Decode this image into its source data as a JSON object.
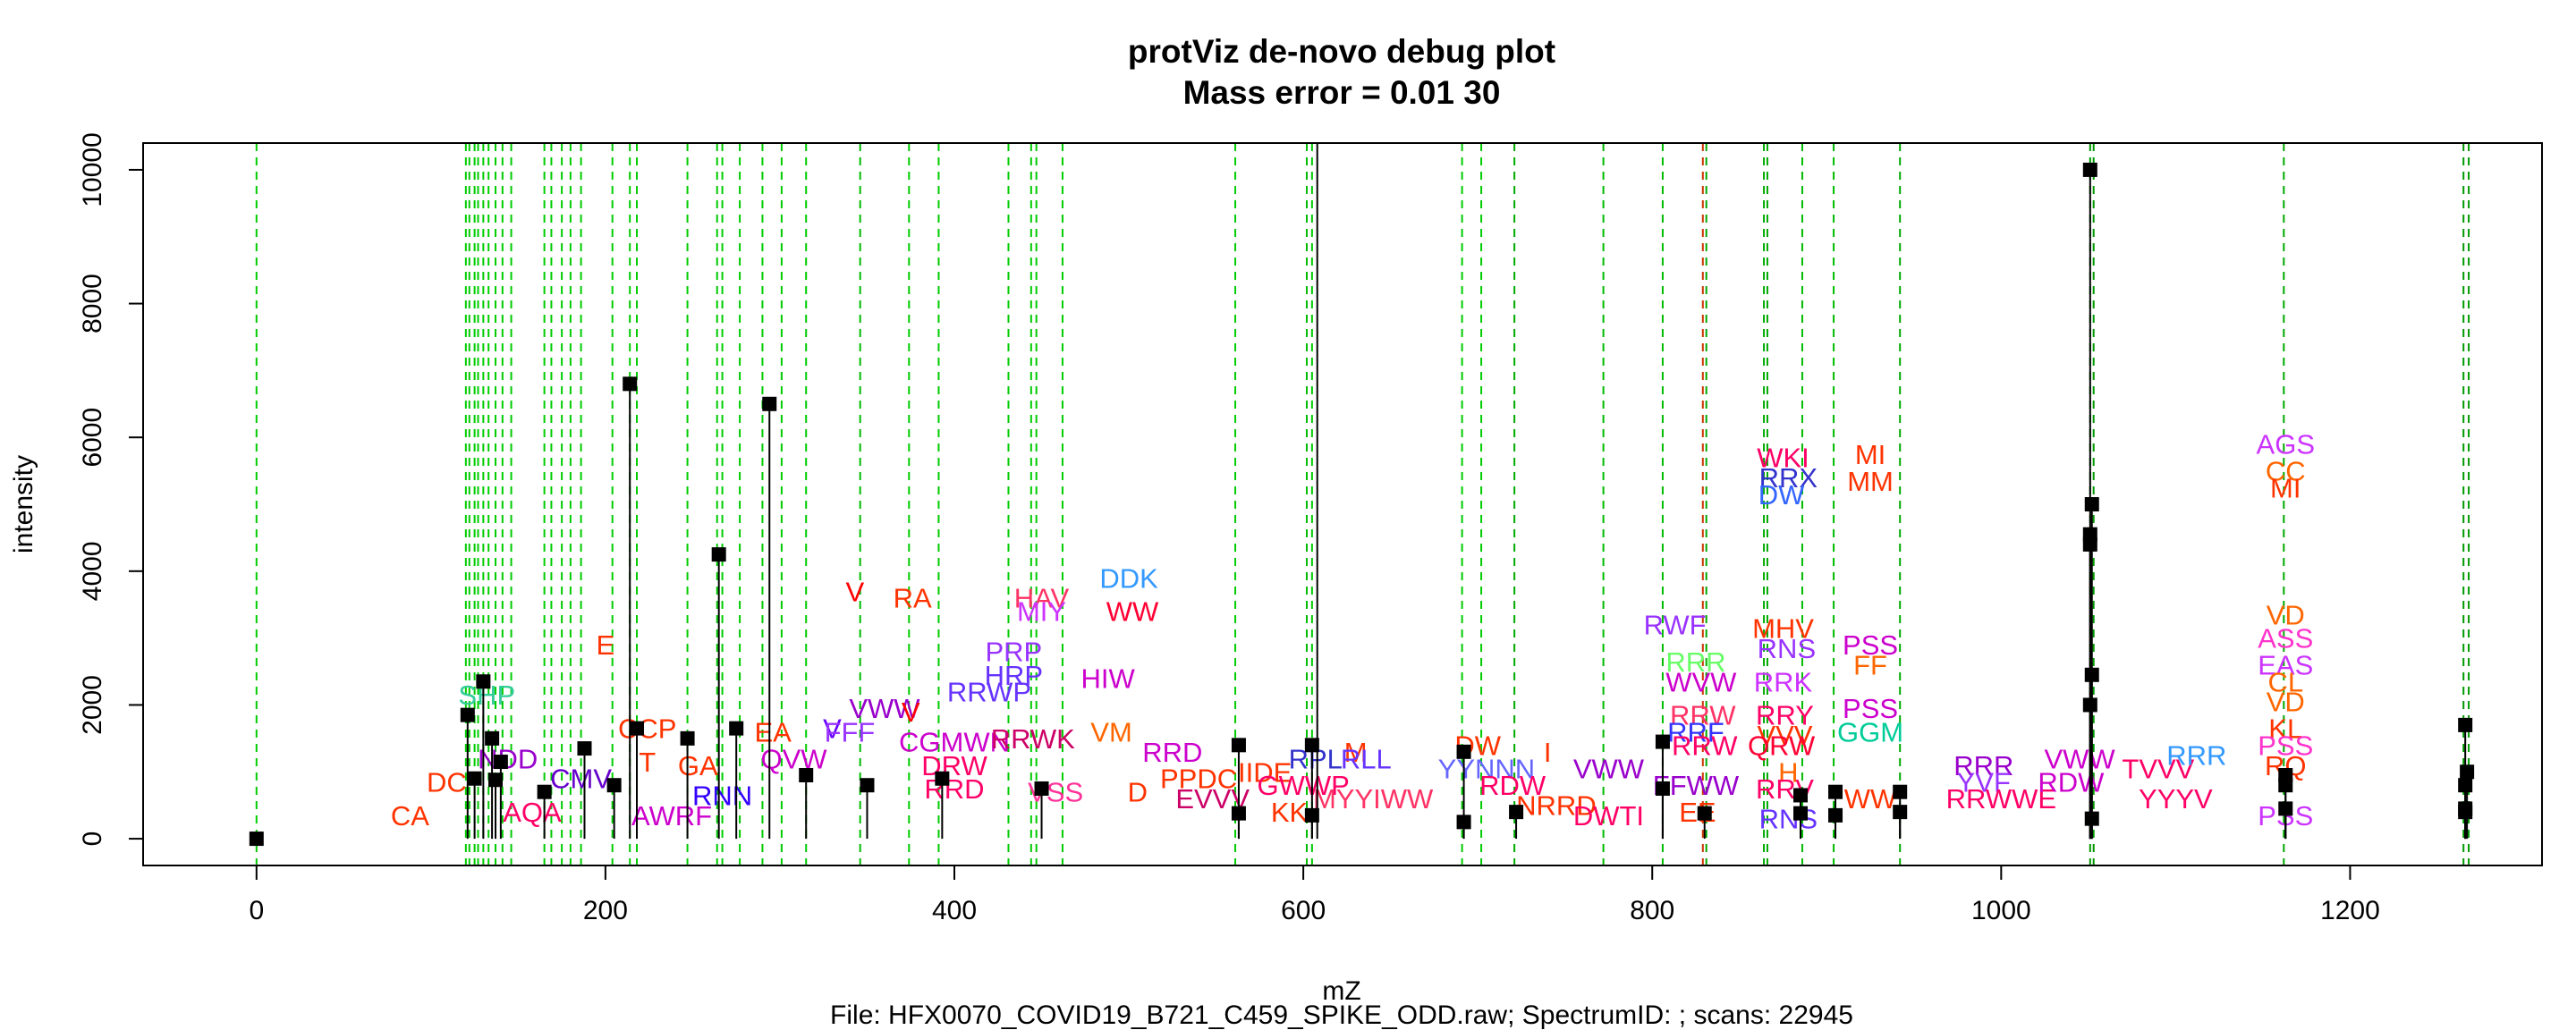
{
  "chart_data": {
    "type": "scatter",
    "title": "protViz de-novo debug plot",
    "subtitle": "Mass error = 0.01 30",
    "xlabel": "mZ",
    "ylabel": "intensity",
    "footer": "File: HFX0070_COVID19_B721_C459_SPIKE_ODD.raw; SpectrumID: ; scans: 22945",
    "xlim": [
      -65,
      1310
    ],
    "ylim": [
      -400,
      10400
    ],
    "x_ticks": [
      "0",
      "200",
      "400",
      "600",
      "800",
      "1000",
      "1200"
    ],
    "y_ticks": [
      "0",
      "2000",
      "4000",
      "6000",
      "8000",
      "10000"
    ],
    "peaks": [
      {
        "x": 0,
        "y": 0
      },
      {
        "x": 121,
        "y": 1850
      },
      {
        "x": 125,
        "y": 900
      },
      {
        "x": 130,
        "y": 2350
      },
      {
        "x": 135,
        "y": 1500
      },
      {
        "x": 137,
        "y": 880
      },
      {
        "x": 140,
        "y": 1150
      },
      {
        "x": 165,
        "y": 700
      },
      {
        "x": 188,
        "y": 1350
      },
      {
        "x": 205,
        "y": 800
      },
      {
        "x": 214,
        "y": 6800
      },
      {
        "x": 218,
        "y": 1650
      },
      {
        "x": 247,
        "y": 1500
      },
      {
        "x": 265,
        "y": 4250
      },
      {
        "x": 275,
        "y": 1650
      },
      {
        "x": 294,
        "y": 6500
      },
      {
        "x": 315,
        "y": 950
      },
      {
        "x": 350,
        "y": 800
      },
      {
        "x": 393,
        "y": 900
      },
      {
        "x": 450,
        "y": 750
      },
      {
        "x": 563,
        "y": 1400
      },
      {
        "x": 563,
        "y": 380
      },
      {
        "x": 605,
        "y": 1400
      },
      {
        "x": 605,
        "y": 350
      },
      {
        "x": 608,
        "y": 10400
      },
      {
        "x": 692,
        "y": 1300
      },
      {
        "x": 692,
        "y": 250
      },
      {
        "x": 722,
        "y": 400
      },
      {
        "x": 806,
        "y": 1450
      },
      {
        "x": 806,
        "y": 750
      },
      {
        "x": 830,
        "y": 380
      },
      {
        "x": 885,
        "y": 650
      },
      {
        "x": 885,
        "y": 380
      },
      {
        "x": 905,
        "y": 700
      },
      {
        "x": 905,
        "y": 350
      },
      {
        "x": 942,
        "y": 700
      },
      {
        "x": 942,
        "y": 400
      },
      {
        "x": 1051,
        "y": 10000
      },
      {
        "x": 1052,
        "y": 5000
      },
      {
        "x": 1051,
        "y": 4550
      },
      {
        "x": 1051,
        "y": 4400
      },
      {
        "x": 1052,
        "y": 2450
      },
      {
        "x": 1051,
        "y": 2000
      },
      {
        "x": 1052,
        "y": 300
      },
      {
        "x": 1163,
        "y": 950
      },
      {
        "x": 1163,
        "y": 800
      },
      {
        "x": 1163,
        "y": 450
      },
      {
        "x": 1266,
        "y": 1700
      },
      {
        "x": 1267,
        "y": 1000
      },
      {
        "x": 1266,
        "y": 800
      },
      {
        "x": 1266,
        "y": 450
      },
      {
        "x": 1266,
        "y": 400
      }
    ],
    "match_lines": [
      {
        "x": 0,
        "color": "#00cc00"
      },
      {
        "x": 120,
        "color": "#00cc00"
      },
      {
        "x": 122,
        "color": "#00cc00"
      },
      {
        "x": 125,
        "color": "#00cc00"
      },
      {
        "x": 127,
        "color": "#00cc00"
      },
      {
        "x": 130,
        "color": "#00cc00"
      },
      {
        "x": 133,
        "color": "#00cc00"
      },
      {
        "x": 137,
        "color": "#00cc00"
      },
      {
        "x": 141,
        "color": "#00cc00"
      },
      {
        "x": 146,
        "color": "#00cc00"
      },
      {
        "x": 165,
        "color": "#00cc00"
      },
      {
        "x": 169,
        "color": "#00cc00"
      },
      {
        "x": 175,
        "color": "#00cc00"
      },
      {
        "x": 180,
        "color": "#00cc00"
      },
      {
        "x": 186,
        "color": "#00cc00"
      },
      {
        "x": 204,
        "color": "#00cc00"
      },
      {
        "x": 214,
        "color": "#00cc00"
      },
      {
        "x": 218,
        "color": "#00cc00"
      },
      {
        "x": 247,
        "color": "#00cc00"
      },
      {
        "x": 264,
        "color": "#00cc00"
      },
      {
        "x": 267,
        "color": "#00cc00"
      },
      {
        "x": 277,
        "color": "#00cc00"
      },
      {
        "x": 290,
        "color": "#00cc00"
      },
      {
        "x": 301,
        "color": "#00cc00"
      },
      {
        "x": 315,
        "color": "#00cc00"
      },
      {
        "x": 346,
        "color": "#00bb00"
      },
      {
        "x": 374,
        "color": "#00cc00"
      },
      {
        "x": 391,
        "color": "#00cc00"
      },
      {
        "x": 431,
        "color": "#00cc00"
      },
      {
        "x": 444,
        "color": "#00cc00"
      },
      {
        "x": 447,
        "color": "#00cc00"
      },
      {
        "x": 462,
        "color": "#00cc00"
      },
      {
        "x": 561,
        "color": "#00cc00"
      },
      {
        "x": 602,
        "color": "#00bb00"
      },
      {
        "x": 605,
        "color": "#00cc00"
      },
      {
        "x": 691,
        "color": "#00cc00"
      },
      {
        "x": 702,
        "color": "#00cc00"
      },
      {
        "x": 721,
        "color": "#00aa00"
      },
      {
        "x": 772,
        "color": "#00bb00"
      },
      {
        "x": 806,
        "color": "#00bb00"
      },
      {
        "x": 829,
        "color": "#cc3300"
      },
      {
        "x": 831,
        "color": "#00aa00"
      },
      {
        "x": 864,
        "color": "#00aa00"
      },
      {
        "x": 866,
        "color": "#00aa00"
      },
      {
        "x": 886,
        "color": "#00bb00"
      },
      {
        "x": 904,
        "color": "#00bb00"
      },
      {
        "x": 942,
        "color": "#00aa00"
      },
      {
        "x": 1051,
        "color": "#009900"
      },
      {
        "x": 1053,
        "color": "#009900"
      },
      {
        "x": 1162,
        "color": "#00aa00"
      },
      {
        "x": 1265,
        "color": "#009900"
      },
      {
        "x": 1268,
        "color": "#009900"
      }
    ],
    "fragment_labels": [
      {
        "x": 88,
        "y": 350,
        "text": "CA",
        "color": "#ff3300"
      },
      {
        "x": 109,
        "y": 850,
        "text": "DC",
        "color": "#ff3300"
      },
      {
        "x": 132,
        "y": 2150,
        "text": "SHP",
        "color": "#33cc99"
      },
      {
        "x": 144,
        "y": 1200,
        "text": "NDD",
        "color": "#9900cc"
      },
      {
        "x": 158,
        "y": 400,
        "text": "AQA",
        "color": "#ff0066"
      },
      {
        "x": 186,
        "y": 900,
        "text": "CMV",
        "color": "#6600cc"
      },
      {
        "x": 200,
        "y": 2900,
        "text": "E",
        "color": "#ff3300"
      },
      {
        "x": 224,
        "y": 1650,
        "text": "CCP",
        "color": "#ff3300"
      },
      {
        "x": 224,
        "y": 1150,
        "text": "T",
        "color": "#ff3300"
      },
      {
        "x": 238,
        "y": 350,
        "text": "AWRF",
        "color": "#cc00cc"
      },
      {
        "x": 253,
        "y": 1100,
        "text": "GA",
        "color": "#ff3300"
      },
      {
        "x": 267,
        "y": 650,
        "text": "RNN",
        "color": "#3300ff"
      },
      {
        "x": 296,
        "y": 1600,
        "text": "EA",
        "color": "#ff3300"
      },
      {
        "x": 308,
        "y": 1200,
        "text": "QVW",
        "color": "#cc00cc"
      },
      {
        "x": 330,
        "y": 1650,
        "text": "V",
        "color": "#6600ff"
      },
      {
        "x": 340,
        "y": 1600,
        "text": "FFF",
        "color": "#9933ff"
      },
      {
        "x": 343,
        "y": 3700,
        "text": "V",
        "color": "#ff0000"
      },
      {
        "x": 360,
        "y": 1950,
        "text": "VWW",
        "color": "#9900cc"
      },
      {
        "x": 375,
        "y": 1900,
        "text": "V",
        "color": "#ff0000"
      },
      {
        "x": 376,
        "y": 3600,
        "text": "RA",
        "color": "#ff3300"
      },
      {
        "x": 400,
        "y": 1450,
        "text": "CGMWN",
        "color": "#cc00cc"
      },
      {
        "x": 400,
        "y": 1100,
        "text": "DRW",
        "color": "#ff0066"
      },
      {
        "x": 400,
        "y": 750,
        "text": "RRD",
        "color": "#ff0066"
      },
      {
        "x": 420,
        "y": 2200,
        "text": "RRWP",
        "color": "#6633ff"
      },
      {
        "x": 434,
        "y": 2800,
        "text": "PRP",
        "color": "#9933ff"
      },
      {
        "x": 434,
        "y": 2450,
        "text": "HRP",
        "color": "#6633ff"
      },
      {
        "x": 445,
        "y": 1500,
        "text": "RRWK",
        "color": "#cc0066"
      },
      {
        "x": 450,
        "y": 3600,
        "text": "HAV",
        "color": "#ff3366"
      },
      {
        "x": 450,
        "y": 3400,
        "text": "MIY",
        "color": "#cc33ff"
      },
      {
        "x": 458,
        "y": 700,
        "text": "VSS",
        "color": "#ff3399"
      },
      {
        "x": 488,
        "y": 2400,
        "text": "HIW",
        "color": "#cc00cc"
      },
      {
        "x": 490,
        "y": 1600,
        "text": "VM",
        "color": "#ff6600"
      },
      {
        "x": 500,
        "y": 3900,
        "text": "DDK",
        "color": "#3399ff"
      },
      {
        "x": 502,
        "y": 3400,
        "text": "WW",
        "color": "#ff0033"
      },
      {
        "x": 505,
        "y": 700,
        "text": "D",
        "color": "#ff3300"
      },
      {
        "x": 525,
        "y": 1300,
        "text": "RRD",
        "color": "#cc00cc"
      },
      {
        "x": 540,
        "y": 900,
        "text": "PPDC",
        "color": "#ff3300"
      },
      {
        "x": 548,
        "y": 600,
        "text": "EVVV",
        "color": "#cc0066"
      },
      {
        "x": 578,
        "y": 1000,
        "text": "IIDE",
        "color": "#ff3300"
      },
      {
        "x": 592,
        "y": 400,
        "text": "KK",
        "color": "#ff3300"
      },
      {
        "x": 600,
        "y": 800,
        "text": "GWWP",
        "color": "#ff0066"
      },
      {
        "x": 607,
        "y": 1200,
        "text": "RPL",
        "color": "#3333cc"
      },
      {
        "x": 630,
        "y": 1300,
        "text": "M",
        "color": "#ff3300"
      },
      {
        "x": 636,
        "y": 1200,
        "text": "RLL",
        "color": "#6633ff"
      },
      {
        "x": 640,
        "y": 600,
        "text": "MYYIWW",
        "color": "#ff3366"
      },
      {
        "x": 700,
        "y": 1400,
        "text": "DW",
        "color": "#ff3300"
      },
      {
        "x": 705,
        "y": 1050,
        "text": "YYNNN",
        "color": "#6666ff"
      },
      {
        "x": 720,
        "y": 800,
        "text": "RDW",
        "color": "#ff0066"
      },
      {
        "x": 740,
        "y": 1300,
        "text": "I",
        "color": "#ff3300"
      },
      {
        "x": 745,
        "y": 500,
        "text": "NRRD",
        "color": "#ff3300"
      },
      {
        "x": 775,
        "y": 350,
        "text": "DWTI",
        "color": "#ff0066"
      },
      {
        "x": 775,
        "y": 1050,
        "text": "VWW",
        "color": "#9900cc"
      },
      {
        "x": 813,
        "y": 3200,
        "text": "RWF",
        "color": "#9933ff"
      },
      {
        "x": 825,
        "y": 2650,
        "text": "RRR",
        "color": "#66ff66"
      },
      {
        "x": 828,
        "y": 2350,
        "text": "WVW",
        "color": "#cc00cc"
      },
      {
        "x": 829,
        "y": 1850,
        "text": "RRW",
        "color": "#ff3366"
      },
      {
        "x": 825,
        "y": 1600,
        "text": "RRF",
        "color": "#3333ff"
      },
      {
        "x": 830,
        "y": 1400,
        "text": "RRW",
        "color": "#ff0066"
      },
      {
        "x": 825,
        "y": 800,
        "text": "FFWW",
        "color": "#9900cc"
      },
      {
        "x": 826,
        "y": 400,
        "text": "EE",
        "color": "#ff3300"
      },
      {
        "x": 875,
        "y": 5700,
        "text": "WKI",
        "color": "#ff0066"
      },
      {
        "x": 878,
        "y": 5400,
        "text": "RRX",
        "color": "#3333cc"
      },
      {
        "x": 874,
        "y": 5150,
        "text": "DW",
        "color": "#3366ff"
      },
      {
        "x": 875,
        "y": 3150,
        "text": "MHV",
        "color": "#ff3300"
      },
      {
        "x": 877,
        "y": 2850,
        "text": "RNS",
        "color": "#9933ff"
      },
      {
        "x": 875,
        "y": 2350,
        "text": "RRK",
        "color": "#cc33ff"
      },
      {
        "x": 876,
        "y": 1850,
        "text": "RRY",
        "color": "#ff0066"
      },
      {
        "x": 876,
        "y": 1550,
        "text": "VVV",
        "color": "#ff3300"
      },
      {
        "x": 874,
        "y": 1400,
        "text": "QRW",
        "color": "#ff0033"
      },
      {
        "x": 878,
        "y": 1000,
        "text": "H",
        "color": "#ff6600"
      },
      {
        "x": 876,
        "y": 750,
        "text": "RRV",
        "color": "#ff0066"
      },
      {
        "x": 878,
        "y": 300,
        "text": "RNS",
        "color": "#6633ff"
      },
      {
        "x": 925,
        "y": 5750,
        "text": "MI",
        "color": "#ff3300"
      },
      {
        "x": 925,
        "y": 5350,
        "text": "MM",
        "color": "#ff3300"
      },
      {
        "x": 925,
        "y": 2900,
        "text": "PSS",
        "color": "#cc00cc"
      },
      {
        "x": 925,
        "y": 2600,
        "text": "FF",
        "color": "#ff6600"
      },
      {
        "x": 925,
        "y": 1950,
        "text": "PSS",
        "color": "#cc00cc"
      },
      {
        "x": 925,
        "y": 1600,
        "text": "GGM",
        "color": "#00cc99"
      },
      {
        "x": 925,
        "y": 600,
        "text": "WW",
        "color": "#ff3300"
      },
      {
        "x": 990,
        "y": 1100,
        "text": "RRR",
        "color": "#9900cc"
      },
      {
        "x": 990,
        "y": 850,
        "text": "YVF",
        "color": "#9933ff"
      },
      {
        "x": 1000,
        "y": 600,
        "text": "RRWWE",
        "color": "#ff0066"
      },
      {
        "x": 1045,
        "y": 1200,
        "text": "VWW",
        "color": "#cc00cc"
      },
      {
        "x": 1040,
        "y": 850,
        "text": "RDW",
        "color": "#cc00cc"
      },
      {
        "x": 1090,
        "y": 1050,
        "text": "TVVV",
        "color": "#ff0066"
      },
      {
        "x": 1112,
        "y": 1250,
        "text": "RRR",
        "color": "#3399ff"
      },
      {
        "x": 1100,
        "y": 600,
        "text": "YYYV",
        "color": "#ff0066"
      },
      {
        "x": 1163,
        "y": 5900,
        "text": "AGS",
        "color": "#cc33ff"
      },
      {
        "x": 1163,
        "y": 5500,
        "text": "CC",
        "color": "#ff6600"
      },
      {
        "x": 1163,
        "y": 5250,
        "text": "MI",
        "color": "#ff3300"
      },
      {
        "x": 1163,
        "y": 3350,
        "text": "VD",
        "color": "#ff6600"
      },
      {
        "x": 1163,
        "y": 3000,
        "text": "ASS",
        "color": "#ff33cc"
      },
      {
        "x": 1163,
        "y": 2600,
        "text": "EAS",
        "color": "#cc33ff"
      },
      {
        "x": 1163,
        "y": 2350,
        "text": "CL",
        "color": "#ff6600"
      },
      {
        "x": 1163,
        "y": 2050,
        "text": "VD",
        "color": "#ff6600"
      },
      {
        "x": 1163,
        "y": 1650,
        "text": "KL",
        "color": "#ff3300"
      },
      {
        "x": 1163,
        "y": 1400,
        "text": "PSS",
        "color": "#ff33cc"
      },
      {
        "x": 1163,
        "y": 1100,
        "text": "RQ",
        "color": "#ff3300"
      },
      {
        "x": 1163,
        "y": 350,
        "text": "PSS",
        "color": "#cc33ff"
      }
    ],
    "grid": false,
    "legend": "none"
  }
}
